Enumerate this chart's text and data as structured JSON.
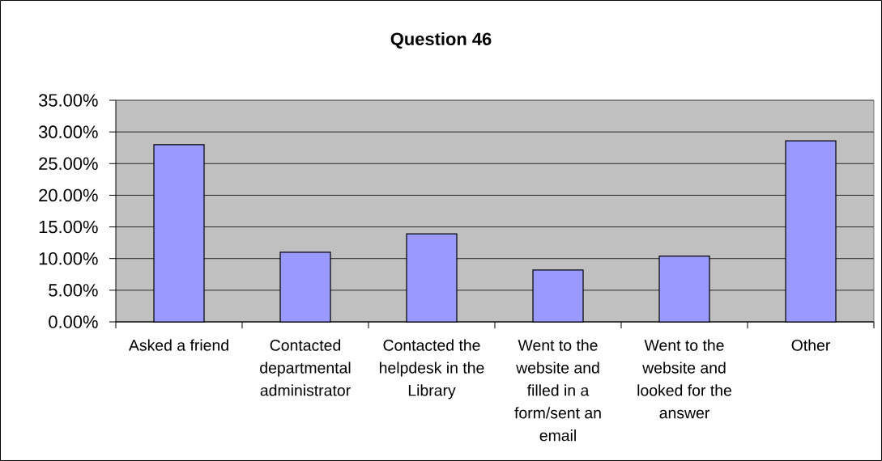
{
  "chart_data": {
    "type": "bar",
    "title": "Question 46",
    "categories": [
      "Asked a friend",
      "Contacted departmental administrator",
      "Contacted the helpdesk in the Library",
      "Went to the website and filled in a form/sent an email",
      "Went to the website and looked for the answer",
      "Other"
    ],
    "values": [
      28.0,
      11.0,
      13.9,
      8.2,
      10.4,
      28.6
    ],
    "color": "#9999ff",
    "ylim": [
      0,
      35
    ],
    "yticks": [
      {
        "value": 0,
        "label": "0.00%"
      },
      {
        "value": 5,
        "label": "5.00%"
      },
      {
        "value": 10,
        "label": "10.00%"
      },
      {
        "value": 15,
        "label": "15.00%"
      },
      {
        "value": 20,
        "label": "20.00%"
      },
      {
        "value": 25,
        "label": "25.00%"
      },
      {
        "value": 30,
        "label": "30.00%"
      },
      {
        "value": 35,
        "label": "35.00%"
      }
    ],
    "grid": "y"
  }
}
